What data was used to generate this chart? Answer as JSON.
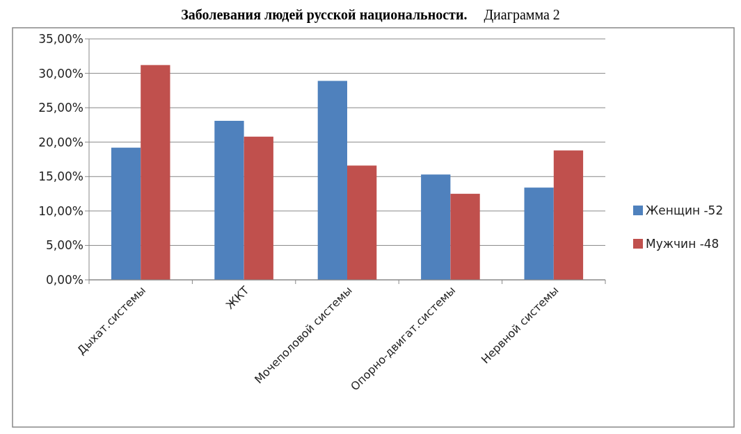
{
  "chart_data": {
    "type": "bar",
    "title": "Заболевания людей русской национальности.",
    "subtitle": "Диаграмма 2",
    "categories": [
      "Дыхат.системы",
      "ЖКТ",
      "Мочеполовой системы",
      "Опорно-двигат.системы",
      "Нервной системы"
    ],
    "series": [
      {
        "name": "Женщин -52",
        "color": "#4f81bd",
        "values": [
          19.2,
          23.1,
          28.9,
          15.3,
          13.4
        ]
      },
      {
        "name": "Мужчин -48",
        "color": "#c0504d",
        "values": [
          31.2,
          20.8,
          16.6,
          12.5,
          18.8
        ]
      }
    ],
    "ylim": [
      0,
      35
    ],
    "yticks": [
      {
        "value": 0,
        "label": "0,00%"
      },
      {
        "value": 5,
        "label": "5,00%"
      },
      {
        "value": 10,
        "label": "10,00%"
      },
      {
        "value": 15,
        "label": "15,00%"
      },
      {
        "value": 20,
        "label": "20,00%"
      },
      {
        "value": 25,
        "label": "25,00%"
      },
      {
        "value": 30,
        "label": "30,00%"
      },
      {
        "value": 35,
        "label": "35,00%"
      }
    ],
    "grid": "y",
    "legend": "right"
  }
}
